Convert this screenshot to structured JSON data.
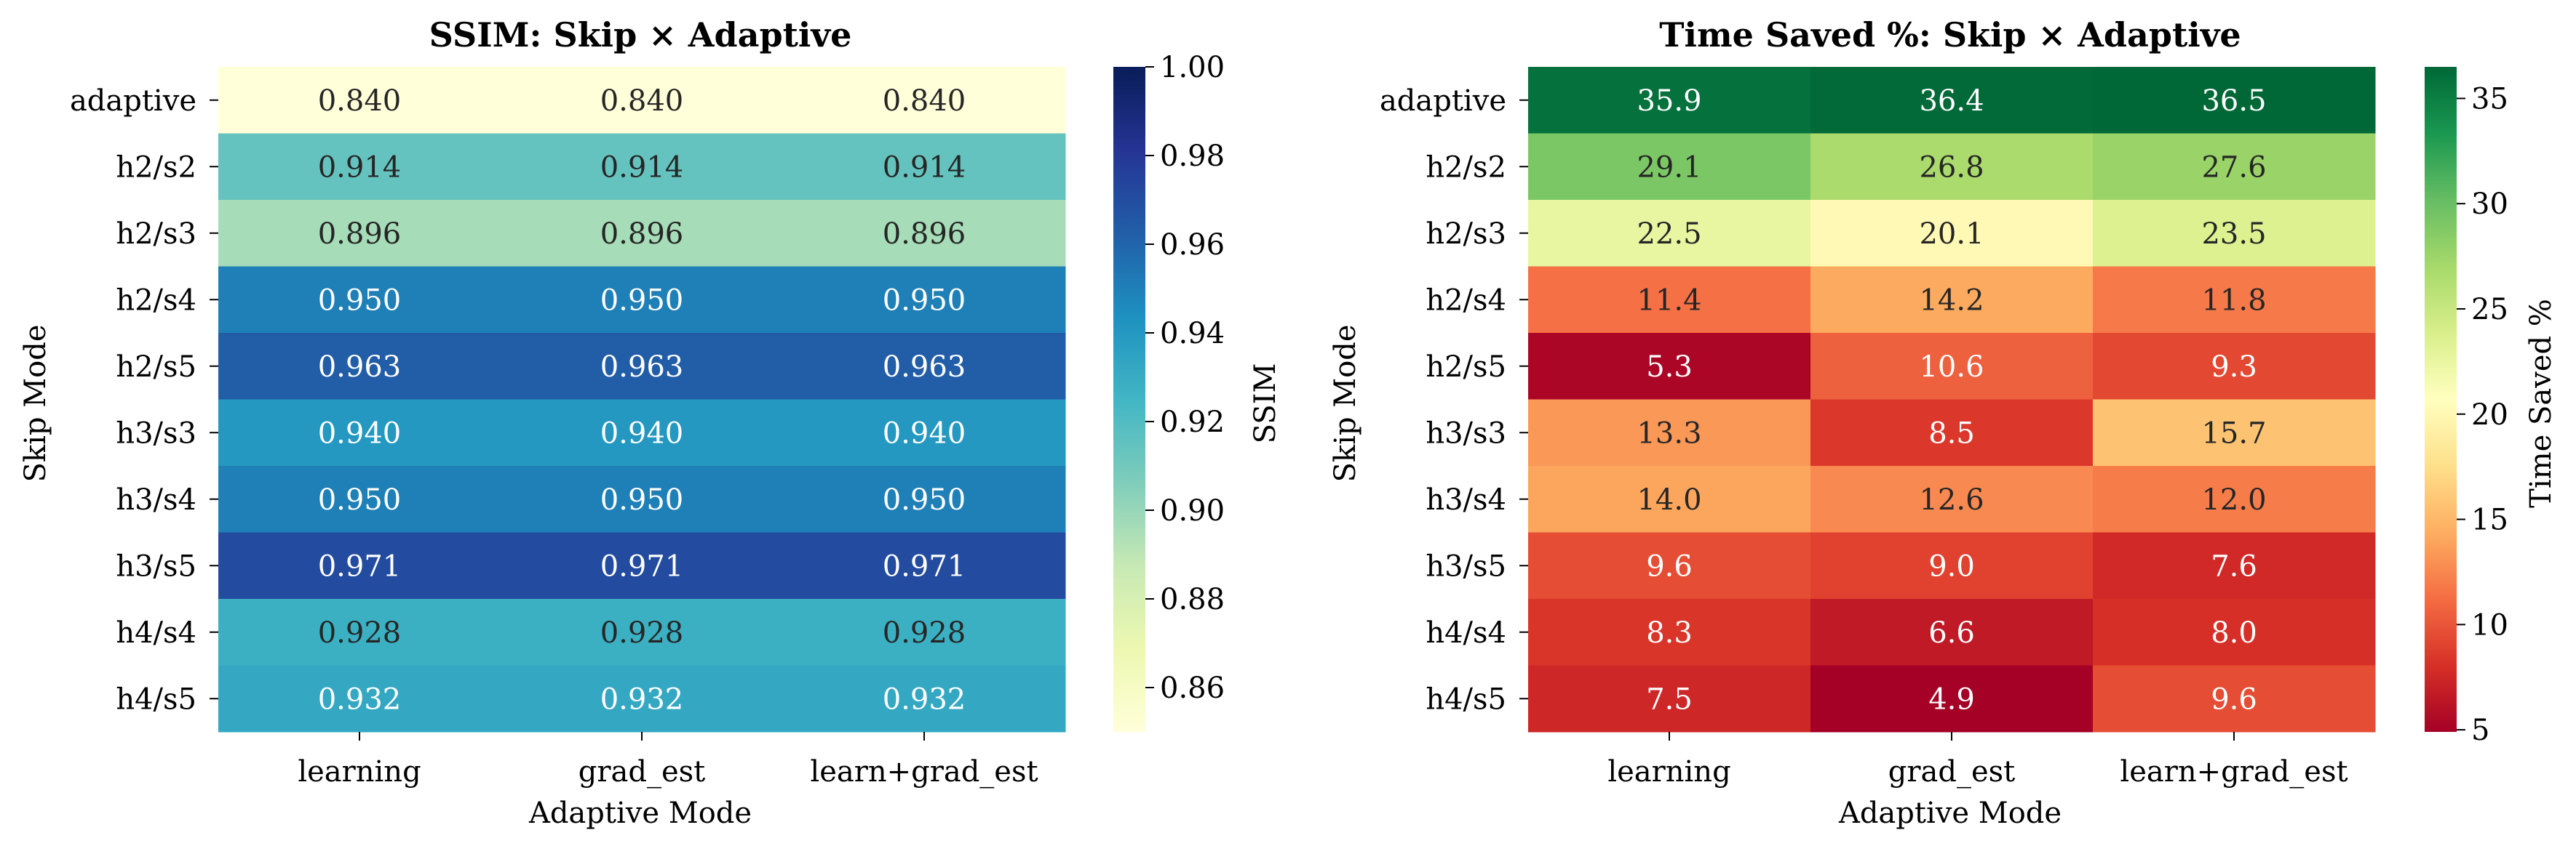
{
  "chart_data": [
    {
      "type": "heatmap",
      "title": "SSIM: Skip × Adaptive",
      "xlabel": "Adaptive Mode",
      "ylabel": "Skip Mode",
      "x_categories": [
        "learning",
        "grad_est",
        "learn+grad_est"
      ],
      "y_categories": [
        "adaptive",
        "h2/s2",
        "h2/s3",
        "h2/s4",
        "h2/s5",
        "h3/s3",
        "h3/s4",
        "h3/s5",
        "h4/s4",
        "h4/s5"
      ],
      "values": [
        [
          0.84,
          0.84,
          0.84
        ],
        [
          0.914,
          0.914,
          0.914
        ],
        [
          0.896,
          0.896,
          0.896
        ],
        [
          0.95,
          0.95,
          0.95
        ],
        [
          0.963,
          0.963,
          0.963
        ],
        [
          0.94,
          0.94,
          0.94
        ],
        [
          0.95,
          0.95,
          0.95
        ],
        [
          0.971,
          0.971,
          0.971
        ],
        [
          0.928,
          0.928,
          0.928
        ],
        [
          0.932,
          0.932,
          0.932
        ]
      ],
      "value_format": 3,
      "colormap": "YlGnBu",
      "vmin": 0.85,
      "vmax": 1.0,
      "colorbar_label": "SSIM",
      "colorbar_ticks": [
        "0.86",
        "0.88",
        "0.90",
        "0.92",
        "0.94",
        "0.96",
        "0.98",
        "1.00"
      ]
    },
    {
      "type": "heatmap",
      "title": "Time Saved %: Skip × Adaptive",
      "xlabel": "Adaptive Mode",
      "ylabel": "Skip Mode",
      "x_categories": [
        "learning",
        "grad_est",
        "learn+grad_est"
      ],
      "y_categories": [
        "adaptive",
        "h2/s2",
        "h2/s3",
        "h2/s4",
        "h2/s5",
        "h3/s3",
        "h3/s4",
        "h3/s5",
        "h4/s4",
        "h4/s5"
      ],
      "values": [
        [
          35.9,
          36.4,
          36.5
        ],
        [
          29.1,
          26.8,
          27.6
        ],
        [
          22.5,
          20.1,
          23.5
        ],
        [
          11.4,
          14.2,
          11.8
        ],
        [
          5.3,
          10.6,
          9.3
        ],
        [
          13.3,
          8.5,
          15.7
        ],
        [
          14.0,
          12.6,
          12.0
        ],
        [
          9.6,
          9.0,
          7.6
        ],
        [
          8.3,
          6.6,
          8.0
        ],
        [
          7.5,
          4.9,
          9.6
        ]
      ],
      "value_format": 1,
      "colormap": "RdYlGn",
      "vmin": 4.9,
      "vmax": 36.5,
      "colorbar_label": "Time Saved %",
      "colorbar_ticks": [
        "5",
        "10",
        "15",
        "20",
        "25",
        "30",
        "35"
      ]
    }
  ]
}
